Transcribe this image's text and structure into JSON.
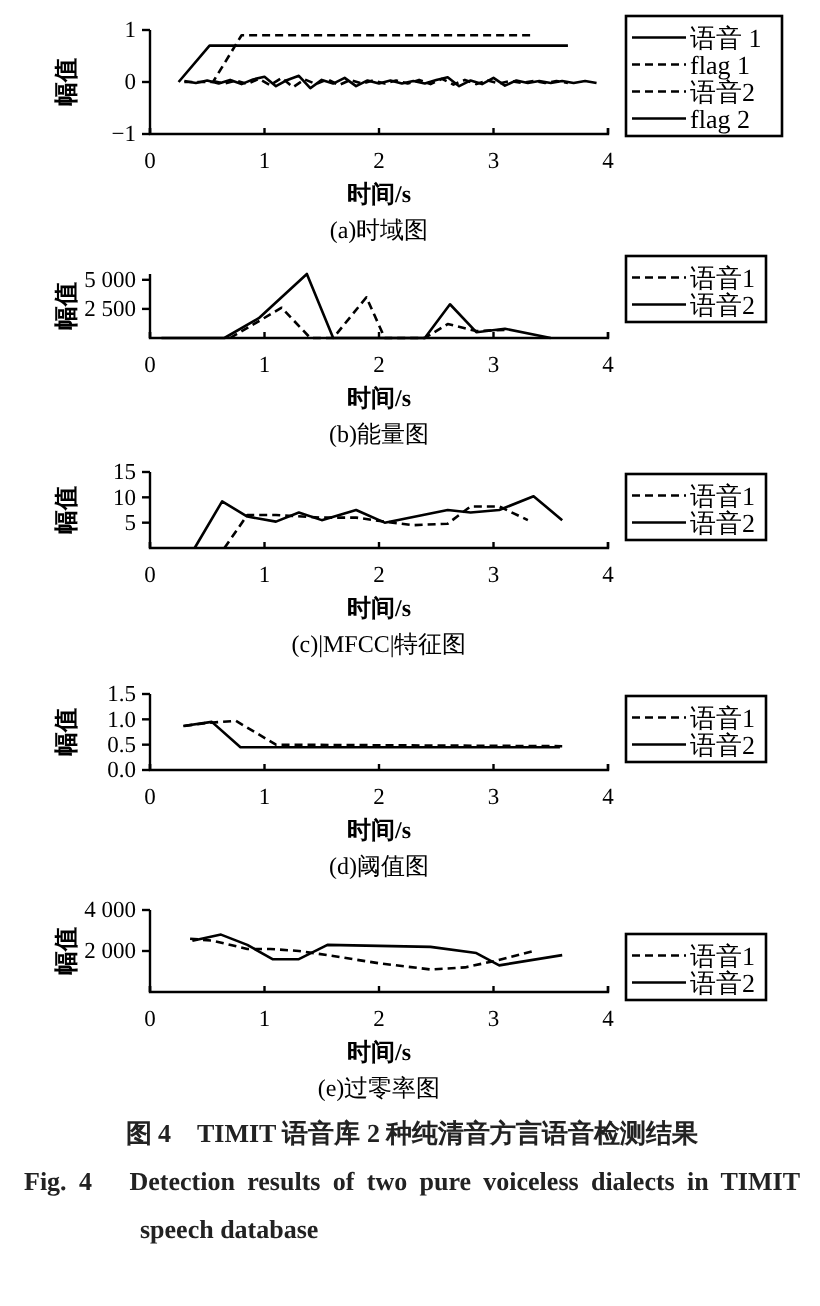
{
  "chart_data": [
    {
      "type": "line",
      "title": "(a)时域图",
      "xlabel": "时间/s",
      "ylabel": "幅值",
      "xlim": [
        0,
        4
      ],
      "xticks": [
        0,
        1,
        2,
        3,
        4
      ],
      "ylim": [
        -1,
        1
      ],
      "yticks": [
        {
          "value": -1,
          "label": "−1"
        },
        0,
        1
      ],
      "legend": "right",
      "series": [
        {
          "name": "语音 1",
          "color": "#000000",
          "line_style": "solid",
          "x": [
            0.3,
            0.4,
            0.5,
            0.6,
            0.7,
            0.8,
            0.9,
            1.0,
            1.1,
            1.2,
            1.3,
            1.4,
            1.5,
            1.6,
            1.7,
            1.8,
            1.9,
            2.0,
            2.1,
            2.2,
            2.3,
            2.4,
            2.5,
            2.6,
            2.7,
            2.8,
            2.9,
            3.0,
            3.1,
            3.2,
            3.3,
            3.4,
            3.5,
            3.6,
            3.7,
            3.8,
            3.9
          ],
          "values": [
            0.02,
            -0.02,
            0.03,
            -0.03,
            0.04,
            -0.04,
            0.05,
            0.1,
            -0.08,
            0.04,
            0.12,
            -0.12,
            0.04,
            -0.03,
            0.08,
            -0.08,
            0.03,
            -0.03,
            0.03,
            -0.03,
            0.02,
            -0.03,
            0.04,
            0.09,
            -0.08,
            0.03,
            -0.04,
            0.08,
            -0.07,
            0.03,
            -0.02,
            0.02,
            -0.02,
            0.02,
            -0.02,
            0.02,
            -0.02
          ]
        },
        {
          "name": "flag 1",
          "color": "#000000",
          "line_style": "dashed",
          "x": [
            0.3,
            0.55,
            0.8,
            3.35
          ],
          "values": [
            0,
            0,
            0.9,
            0.9
          ]
        },
        {
          "name": "语音2",
          "color": "#000000",
          "line_style": "dashed",
          "x": [
            0.55,
            0.65,
            0.75,
            0.85,
            0.95,
            1.05,
            1.15,
            1.25,
            1.35,
            1.45,
            1.55,
            1.65,
            1.75,
            1.85,
            1.95,
            2.05,
            2.15,
            2.25,
            2.35,
            2.45,
            2.55,
            2.65,
            2.75,
            2.85,
            2.95,
            3.05,
            3.15,
            3.25,
            3.35,
            3.45,
            3.55,
            3.65
          ],
          "values": [
            0.02,
            -0.03,
            0.03,
            -0.04,
            0.06,
            -0.06,
            0.08,
            -0.1,
            0.05,
            -0.04,
            0.05,
            -0.06,
            0.04,
            -0.03,
            0.03,
            -0.03,
            0.03,
            -0.03,
            0.04,
            -0.04,
            0.06,
            -0.05,
            0.04,
            -0.04,
            0.03,
            -0.03,
            0.02,
            -0.02,
            0.02,
            -0.02,
            0.02,
            -0.02
          ]
        },
        {
          "name": "flag 2",
          "color": "#000000",
          "line_style": "solid",
          "x": [
            0.25,
            0.52,
            3.65
          ],
          "values": [
            0,
            0.7,
            0.7
          ]
        }
      ]
    },
    {
      "type": "line",
      "title": "(b)能量图",
      "xlabel": "时间/s",
      "ylabel": "幅值",
      "xlim": [
        0,
        4
      ],
      "xticks": [
        0,
        1,
        2,
        3,
        4
      ],
      "ylim": [
        0,
        5500
      ],
      "yticks": [
        {
          "value": 2500,
          "label": "2 500"
        },
        {
          "value": 5000,
          "label": "5 000"
        }
      ],
      "legend": "right",
      "series": [
        {
          "name": "语音1",
          "color": "#000000",
          "line_style": "dashed",
          "x": [
            0.7,
            1.15,
            1.4,
            1.6,
            1.89,
            2.05,
            2.4,
            2.6,
            2.85,
            3.1
          ],
          "values": [
            0,
            2600,
            0,
            0,
            3500,
            0,
            0,
            1200,
            600,
            700
          ]
        },
        {
          "name": "语音2",
          "color": "#000000",
          "line_style": "solid",
          "x": [
            0.1,
            0.65,
            0.95,
            1.37,
            1.6,
            2.4,
            2.62,
            2.85,
            3.1,
            3.5
          ],
          "values": [
            0,
            0,
            1700,
            5500,
            0,
            0,
            2900,
            500,
            800,
            0
          ]
        }
      ]
    },
    {
      "type": "line",
      "title": "(c)|MFCC|特征图",
      "xlabel": "时间/s",
      "ylabel": "幅值",
      "xlim": [
        0,
        4
      ],
      "xticks": [
        0,
        1,
        2,
        3,
        4
      ],
      "ylim": [
        0,
        15
      ],
      "yticks": [
        5,
        10,
        15
      ],
      "legend": "right",
      "series": [
        {
          "name": "语音1",
          "color": "#000000",
          "line_style": "dashed",
          "x": [
            0.65,
            0.85,
            1.1,
            1.5,
            1.8,
            2.05,
            2.3,
            2.6,
            2.8,
            3.05,
            3.3
          ],
          "values": [
            0,
            6.5,
            6.5,
            6,
            6,
            5.2,
            4.5,
            4.8,
            8.2,
            8.2,
            5.5
          ]
        },
        {
          "name": "语音2",
          "color": "#000000",
          "line_style": "solid",
          "x": [
            0.39,
            0.63,
            0.85,
            1.1,
            1.3,
            1.5,
            1.8,
            2.05,
            2.6,
            2.8,
            3.05,
            3.35,
            3.6
          ],
          "values": [
            0,
            9.2,
            6.2,
            5.2,
            7,
            5.5,
            7.5,
            5,
            7.5,
            7,
            7.5,
            10.2,
            5.5
          ]
        }
      ]
    },
    {
      "type": "line",
      "title": "(d)阈值图",
      "xlabel": "时间/s",
      "ylabel": "幅值",
      "xlim": [
        0,
        4
      ],
      "xticks": [
        0,
        1,
        2,
        3,
        4
      ],
      "ylim": [
        0,
        1.5
      ],
      "yticks": [
        {
          "value": 0,
          "label": "0.0"
        },
        {
          "value": 0.5,
          "label": "0.5"
        },
        {
          "value": 1,
          "label": "1.0"
        },
        {
          "value": 1.5,
          "label": "1.5"
        }
      ],
      "legend": "right",
      "series": [
        {
          "name": "语音1",
          "color": "#000000",
          "line_style": "dashed",
          "x": [
            0.3,
            0.5,
            0.75,
            1.1,
            3.6
          ],
          "values": [
            0.87,
            0.93,
            0.97,
            0.5,
            0.47
          ]
        },
        {
          "name": "语音2",
          "color": "#000000",
          "line_style": "solid",
          "x": [
            0.29,
            0.54,
            0.79,
            3.58
          ],
          "values": [
            0.87,
            0.95,
            0.45,
            0.45
          ]
        }
      ]
    },
    {
      "type": "line",
      "title": "(e)过零率图",
      "xlabel": "时间/s",
      "ylabel": "幅值",
      "xlim": [
        0,
        4
      ],
      "xticks": [
        0,
        1,
        2,
        3,
        4
      ],
      "ylim": [
        0,
        4000
      ],
      "yticks": [
        {
          "value": 2000,
          "label": "2 000"
        },
        {
          "value": 4000,
          "label": "4 000"
        }
      ],
      "legend": "right",
      "annotations": [
        "图 4　TIMIT 语音库 2 种纯清音方言语音检测结果",
        "Fig. 4　Detection results of two pure voiceless dialects in TIMIT speech database"
      ],
      "series": [
        {
          "name": "语音1",
          "color": "#000000",
          "line_style": "dashed",
          "x": [
            0.35,
            0.55,
            0.85,
            1.05,
            1.3,
            1.55,
            2.0,
            2.45,
            2.75,
            3.0,
            3.35
          ],
          "values": [
            2600,
            2500,
            2100,
            2100,
            2000,
            1800,
            1400,
            1100,
            1200,
            1500,
            2000
          ]
        },
        {
          "name": "语音2",
          "color": "#000000",
          "line_style": "solid",
          "x": [
            0.37,
            0.62,
            0.85,
            1.07,
            1.3,
            1.55,
            2.45,
            2.85,
            3.05,
            3.6
          ],
          "values": [
            2500,
            2800,
            2300,
            1600,
            1600,
            2300,
            2200,
            1900,
            1300,
            1800
          ]
        }
      ]
    }
  ]
}
